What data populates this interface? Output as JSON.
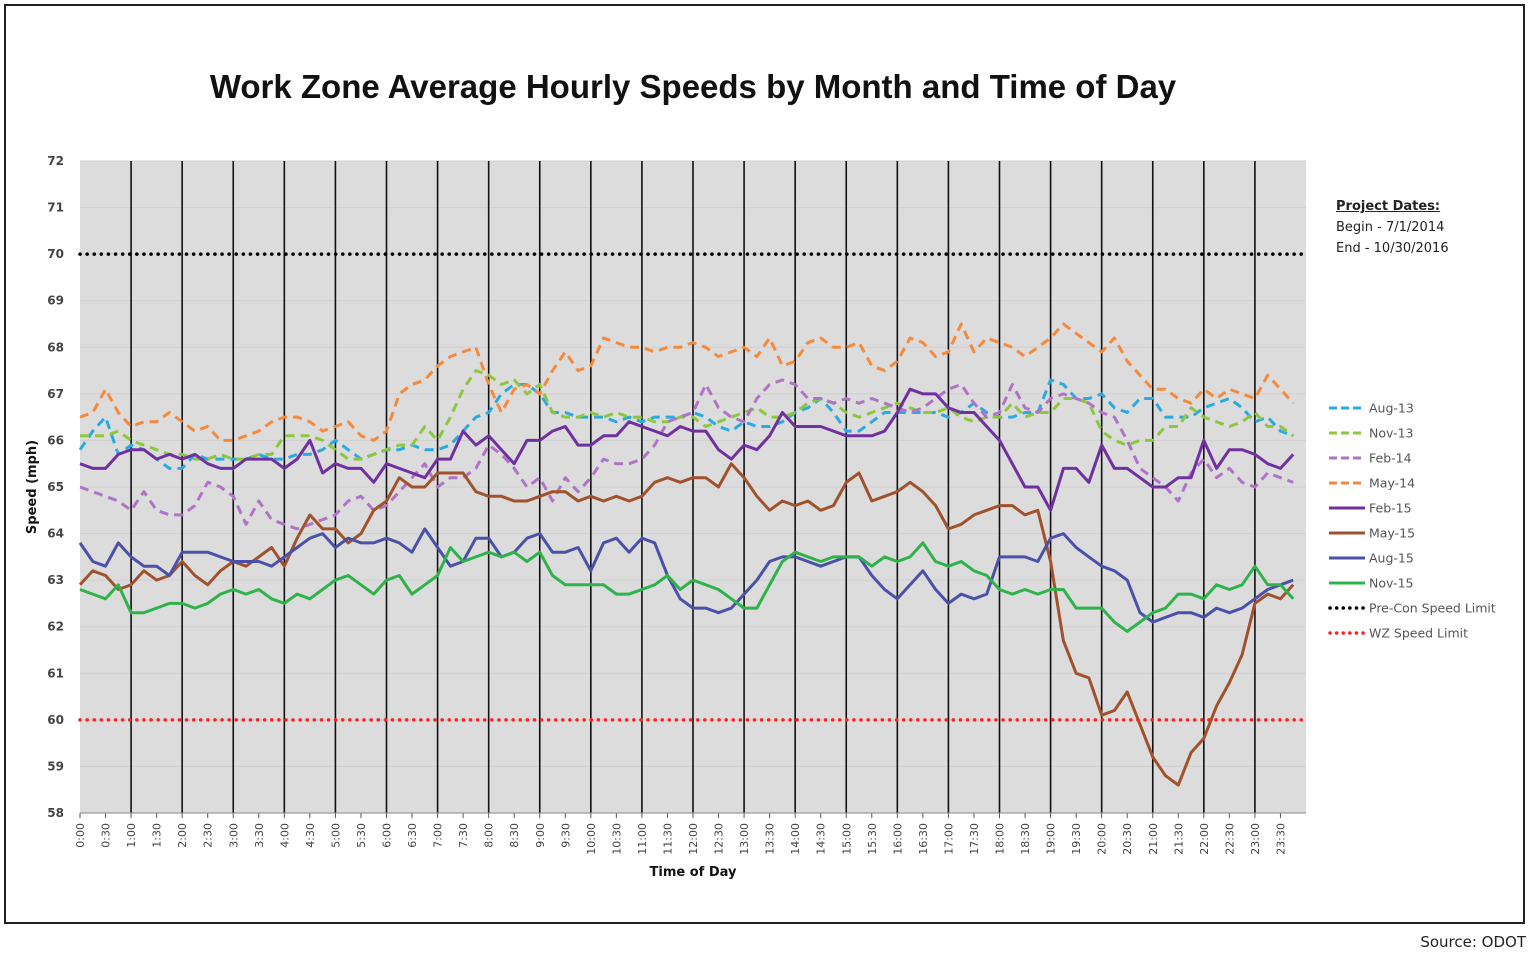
{
  "source": "Source: ODOT",
  "project_dates": {
    "heading": "Project Dates:",
    "begin": "Begin - 7/1/2014",
    "end": "End - 10/30/2016"
  },
  "chart_data": {
    "type": "line",
    "title": "Work Zone Average Hourly Speeds by Month and Time of Day",
    "xlabel": "Time of Day",
    "ylabel": "Speed (mph)",
    "ylim": [
      58,
      72
    ],
    "yticks": [
      "58",
      "59",
      "60",
      "61",
      "62",
      "63",
      "64",
      "65",
      "66",
      "67",
      "68",
      "69",
      "70",
      "71",
      "72"
    ],
    "xticks": [
      "0:00",
      "0:30",
      "1:00",
      "1:30",
      "2:00",
      "2:30",
      "3:00",
      "3:30",
      "4:00",
      "4:30",
      "5:00",
      "5:30",
      "6:00",
      "6:30",
      "7:00",
      "7:30",
      "8:00",
      "8:30",
      "9:00",
      "9:30",
      "10:00",
      "10:30",
      "11:00",
      "11:30",
      "12:00",
      "12:30",
      "13:00",
      "13:30",
      "14:00",
      "14:30",
      "15:00",
      "15:30",
      "16:00",
      "16:30",
      "17:00",
      "17:30",
      "18:00",
      "18:30",
      "19:00",
      "19:30",
      "20:00",
      "20:30",
      "21:00",
      "21:30",
      "22:00",
      "22:30",
      "23:00",
      "23:30"
    ],
    "x_interval_minutes": 15,
    "grid": true,
    "legend_position": "right",
    "series": [
      {
        "name": "Aug-13",
        "color": "#29abe2",
        "style": "dashed",
        "values": [
          65.8,
          66.2,
          66.5,
          65.7,
          65.9,
          65.8,
          65.6,
          65.4,
          65.4,
          65.7,
          65.6,
          65.6,
          65.6,
          65.6,
          65.7,
          65.6,
          65.6,
          65.7,
          65.7,
          65.8,
          66.0,
          65.8,
          65.6,
          65.7,
          65.8,
          65.8,
          65.9,
          65.8,
          65.8,
          65.9,
          66.2,
          66.5,
          66.6,
          67.0,
          67.2,
          67.2,
          67.0,
          66.6,
          66.6,
          66.5,
          66.5,
          66.5,
          66.4,
          66.5,
          66.4,
          66.5,
          66.5,
          66.5,
          66.6,
          66.5,
          66.3,
          66.2,
          66.4,
          66.3,
          66.3,
          66.4,
          66.6,
          66.7,
          66.9,
          66.6,
          66.2,
          66.2,
          66.4,
          66.6,
          66.6,
          66.6,
          66.6,
          66.6,
          66.5,
          66.6,
          66.8,
          66.6,
          66.5,
          66.5,
          66.6,
          66.6,
          67.3,
          67.2,
          66.9,
          66.9,
          67.0,
          66.7,
          66.6,
          66.9,
          66.9,
          66.5,
          66.5,
          66.5,
          66.7,
          66.8,
          66.9,
          66.7,
          66.4,
          66.5,
          66.2,
          66.1
        ]
      },
      {
        "name": "Nov-13",
        "color": "#8dc63f",
        "style": "dashed",
        "values": [
          66.1,
          66.1,
          66.1,
          66.2,
          66.0,
          65.9,
          65.8,
          65.7,
          65.7,
          65.6,
          65.6,
          65.7,
          65.6,
          65.6,
          65.7,
          65.7,
          66.1,
          66.1,
          66.1,
          66.0,
          65.8,
          65.6,
          65.6,
          65.7,
          65.8,
          65.9,
          65.9,
          66.3,
          66.0,
          66.5,
          67.1,
          67.5,
          67.4,
          67.2,
          67.3,
          67.0,
          67.2,
          66.6,
          66.5,
          66.5,
          66.6,
          66.5,
          66.6,
          66.5,
          66.5,
          66.4,
          66.4,
          66.5,
          66.5,
          66.3,
          66.4,
          66.5,
          66.6,
          66.7,
          66.5,
          66.5,
          66.6,
          66.8,
          66.9,
          66.8,
          66.6,
          66.5,
          66.6,
          66.7,
          66.8,
          66.7,
          66.6,
          66.6,
          66.7,
          66.5,
          66.4,
          66.5,
          66.5,
          66.8,
          66.5,
          66.6,
          66.6,
          66.9,
          66.9,
          66.8,
          66.2,
          66.0,
          65.9,
          66.0,
          66.0,
          66.3,
          66.3,
          66.7,
          66.5,
          66.4,
          66.3,
          66.4,
          66.6,
          66.3,
          66.3,
          66.1
        ]
      },
      {
        "name": "Feb-14",
        "color": "#b073c8",
        "style": "dashed",
        "values": [
          65.0,
          64.9,
          64.8,
          64.7,
          64.5,
          64.9,
          64.5,
          64.4,
          64.4,
          64.6,
          65.1,
          65.0,
          64.8,
          64.2,
          64.7,
          64.3,
          64.2,
          64.1,
          64.2,
          64.3,
          64.4,
          64.7,
          64.8,
          64.5,
          64.6,
          64.9,
          65.2,
          65.5,
          65.0,
          65.2,
          65.2,
          65.4,
          65.9,
          65.7,
          65.4,
          65.0,
          65.2,
          64.7,
          65.2,
          64.9,
          65.2,
          65.6,
          65.5,
          65.5,
          65.6,
          65.9,
          66.4,
          66.5,
          66.6,
          67.2,
          66.7,
          66.5,
          66.4,
          66.9,
          67.2,
          67.3,
          67.2,
          66.9,
          66.9,
          66.8,
          66.9,
          66.8,
          66.9,
          66.8,
          66.7,
          66.6,
          66.7,
          66.9,
          67.1,
          67.2,
          66.8,
          66.5,
          66.6,
          67.2,
          66.7,
          66.6,
          66.9,
          67.0,
          66.9,
          66.8,
          66.6,
          66.5,
          66.0,
          65.4,
          65.2,
          65.0,
          64.7,
          65.3,
          65.6,
          65.2,
          65.4,
          65.1,
          65.0,
          65.3,
          65.2,
          65.1
        ]
      },
      {
        "name": "May-14",
        "color": "#f58a3c",
        "style": "dashed",
        "values": [
          66.5,
          66.6,
          67.1,
          66.6,
          66.3,
          66.4,
          66.4,
          66.6,
          66.4,
          66.2,
          66.3,
          66.0,
          66.0,
          66.1,
          66.2,
          66.4,
          66.5,
          66.5,
          66.4,
          66.2,
          66.3,
          66.4,
          66.1,
          66.0,
          66.2,
          67.0,
          67.2,
          67.3,
          67.6,
          67.8,
          67.9,
          68.0,
          67.2,
          66.6,
          67.1,
          67.2,
          67.0,
          67.5,
          67.9,
          67.5,
          67.6,
          68.2,
          68.1,
          68.0,
          68.0,
          67.9,
          68.0,
          68.0,
          68.1,
          68.0,
          67.8,
          67.9,
          68.0,
          67.8,
          68.2,
          67.6,
          67.7,
          68.1,
          68.2,
          68.0,
          68.0,
          68.1,
          67.6,
          67.5,
          67.7,
          68.2,
          68.1,
          67.8,
          67.9,
          68.5,
          67.9,
          68.2,
          68.1,
          68.0,
          67.8,
          68.0,
          68.2,
          68.5,
          68.3,
          68.1,
          67.9,
          68.2,
          67.7,
          67.4,
          67.1,
          67.1,
          66.9,
          66.8,
          67.1,
          66.9,
          67.1,
          67.0,
          66.9,
          67.4,
          67.1,
          66.8
        ]
      },
      {
        "name": "Feb-15",
        "color": "#7030a0",
        "style": "solid",
        "values": [
          65.5,
          65.4,
          65.4,
          65.7,
          65.8,
          65.8,
          65.6,
          65.7,
          65.6,
          65.7,
          65.5,
          65.4,
          65.4,
          65.6,
          65.6,
          65.6,
          65.4,
          65.6,
          66.0,
          65.3,
          65.5,
          65.4,
          65.4,
          65.1,
          65.5,
          65.4,
          65.3,
          65.2,
          65.6,
          65.6,
          66.2,
          65.9,
          66.1,
          65.8,
          65.5,
          66.0,
          66.0,
          66.2,
          66.3,
          65.9,
          65.9,
          66.1,
          66.1,
          66.4,
          66.3,
          66.2,
          66.1,
          66.3,
          66.2,
          66.2,
          65.8,
          65.6,
          65.9,
          65.8,
          66.1,
          66.6,
          66.3,
          66.3,
          66.3,
          66.2,
          66.1,
          66.1,
          66.1,
          66.2,
          66.6,
          67.1,
          67.0,
          67.0,
          66.7,
          66.6,
          66.6,
          66.3,
          66.0,
          65.5,
          65.0,
          65.0,
          64.5,
          65.4,
          65.4,
          65.1,
          65.9,
          65.4,
          65.4,
          65.2,
          65.0,
          65.0,
          65.2,
          65.2,
          66.0,
          65.4,
          65.8,
          65.8,
          65.7,
          65.5,
          65.4,
          65.7
        ]
      },
      {
        "name": "May-15",
        "color": "#a0522d",
        "style": "solid",
        "values": [
          62.9,
          63.2,
          63.1,
          62.8,
          62.9,
          63.2,
          63.0,
          63.1,
          63.4,
          63.1,
          62.9,
          63.2,
          63.4,
          63.3,
          63.5,
          63.7,
          63.3,
          63.9,
          64.4,
          64.1,
          64.1,
          63.8,
          64.0,
          64.5,
          64.7,
          65.2,
          65.0,
          65.0,
          65.3,
          65.3,
          65.3,
          64.9,
          64.8,
          64.8,
          64.7,
          64.7,
          64.8,
          64.9,
          64.9,
          64.7,
          64.8,
          64.7,
          64.8,
          64.7,
          64.8,
          65.1,
          65.2,
          65.1,
          65.2,
          65.2,
          65.0,
          65.5,
          65.2,
          64.8,
          64.5,
          64.7,
          64.6,
          64.7,
          64.5,
          64.6,
          65.1,
          65.3,
          64.7,
          64.8,
          64.9,
          65.1,
          64.9,
          64.6,
          64.1,
          64.2,
          64.4,
          64.5,
          64.6,
          64.6,
          64.4,
          64.5,
          63.4,
          61.7,
          61.0,
          60.9,
          60.1,
          60.2,
          60.6,
          59.9,
          59.2,
          58.8,
          58.6,
          59.3,
          59.6,
          60.3,
          60.8,
          61.4,
          62.5,
          62.7,
          62.6,
          62.9
        ]
      },
      {
        "name": "Aug-15",
        "color": "#4b50a8",
        "style": "solid",
        "values": [
          63.8,
          63.4,
          63.3,
          63.8,
          63.5,
          63.3,
          63.3,
          63.1,
          63.6,
          63.6,
          63.6,
          63.5,
          63.4,
          63.4,
          63.4,
          63.3,
          63.5,
          63.7,
          63.9,
          64.0,
          63.7,
          63.9,
          63.8,
          63.8,
          63.9,
          63.8,
          63.6,
          64.1,
          63.7,
          63.3,
          63.4,
          63.9,
          63.9,
          63.5,
          63.6,
          63.9,
          64.0,
          63.6,
          63.6,
          63.7,
          63.2,
          63.8,
          63.9,
          63.6,
          63.9,
          63.8,
          63.1,
          62.6,
          62.4,
          62.4,
          62.3,
          62.4,
          62.7,
          63.0,
          63.4,
          63.5,
          63.5,
          63.4,
          63.3,
          63.4,
          63.5,
          63.5,
          63.1,
          62.8,
          62.6,
          62.9,
          63.2,
          62.8,
          62.5,
          62.7,
          62.6,
          62.7,
          63.5,
          63.5,
          63.5,
          63.4,
          63.9,
          64.0,
          63.7,
          63.5,
          63.3,
          63.2,
          63.0,
          62.3,
          62.1,
          62.2,
          62.3,
          62.3,
          62.2,
          62.4,
          62.3,
          62.4,
          62.6,
          62.8,
          62.9,
          63.0
        ]
      },
      {
        "name": "Nov-15",
        "color": "#2db34a",
        "style": "solid",
        "values": [
          62.8,
          62.7,
          62.6,
          62.9,
          62.3,
          62.3,
          62.4,
          62.5,
          62.5,
          62.4,
          62.5,
          62.7,
          62.8,
          62.7,
          62.8,
          62.6,
          62.5,
          62.7,
          62.6,
          62.8,
          63.0,
          63.1,
          62.9,
          62.7,
          63.0,
          63.1,
          62.7,
          62.9,
          63.1,
          63.7,
          63.4,
          63.5,
          63.6,
          63.5,
          63.6,
          63.4,
          63.6,
          63.1,
          62.9,
          62.9,
          62.9,
          62.9,
          62.7,
          62.7,
          62.8,
          62.9,
          63.1,
          62.8,
          63.0,
          62.9,
          62.8,
          62.6,
          62.4,
          62.4,
          62.9,
          63.4,
          63.6,
          63.5,
          63.4,
          63.5,
          63.5,
          63.5,
          63.3,
          63.5,
          63.4,
          63.5,
          63.8,
          63.4,
          63.3,
          63.4,
          63.2,
          63.1,
          62.8,
          62.7,
          62.8,
          62.7,
          62.8,
          62.8,
          62.4,
          62.4,
          62.4,
          62.1,
          61.9,
          62.1,
          62.3,
          62.4,
          62.7,
          62.7,
          62.6,
          62.9,
          62.8,
          62.9,
          63.3,
          62.9,
          62.9,
          62.6
        ]
      },
      {
        "name": "Pre-Con Speed Limit",
        "color": "#000000",
        "style": "dotted",
        "constant": 70
      },
      {
        "name": "WZ Speed Limit",
        "color": "#ff2020",
        "style": "dotted",
        "constant": 60
      }
    ]
  }
}
